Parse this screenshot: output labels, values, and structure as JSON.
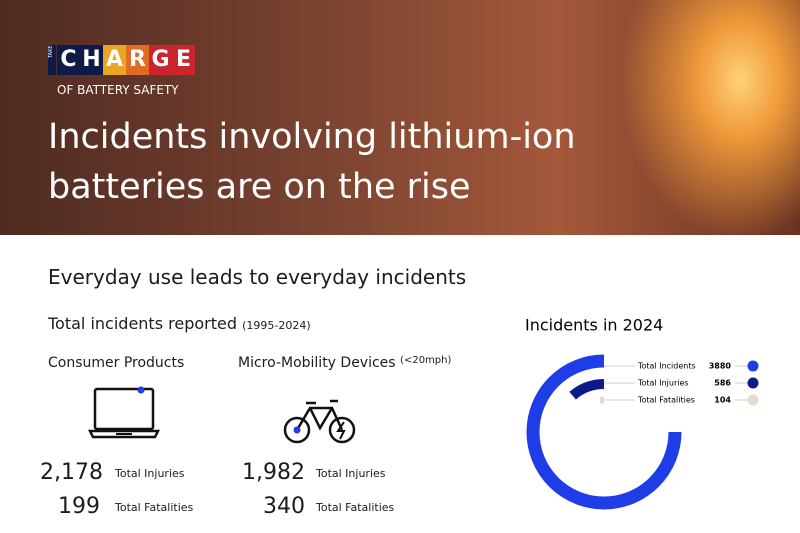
{
  "header": {
    "logo_take": "TAKE",
    "logo_charge": "CHARGE",
    "logo_sub": "OF BATTERY SAFETY",
    "title": "Incidents involving lithium-ion batteries are on the rise"
  },
  "section_title": "Everyday use leads to everyday incidents",
  "totals": {
    "title": "Total incidents reported",
    "period": "(1995-2024)",
    "groups": [
      {
        "name": "Consumer Products",
        "stats": [
          {
            "value": "2,178",
            "label": "Total Injuries"
          },
          {
            "value": "199",
            "label": "Total Fatalities"
          }
        ]
      },
      {
        "name": "Micro-Mobility Devices",
        "note": "(<20mph)",
        "stats": [
          {
            "value": "1,982",
            "label": "Total Injuries"
          },
          {
            "value": "340",
            "label": "Total Fatalities"
          }
        ]
      }
    ]
  },
  "chart_data": {
    "type": "radial-bar",
    "title": "Incidents in 2024",
    "categories": [
      "Total Incidents",
      "Total Injuries",
      "Total Fatalities"
    ],
    "values": [
      3880,
      586,
      104
    ],
    "colors": [
      "#1f3de6",
      "#0d1a8a",
      "#e2dccd"
    ]
  }
}
